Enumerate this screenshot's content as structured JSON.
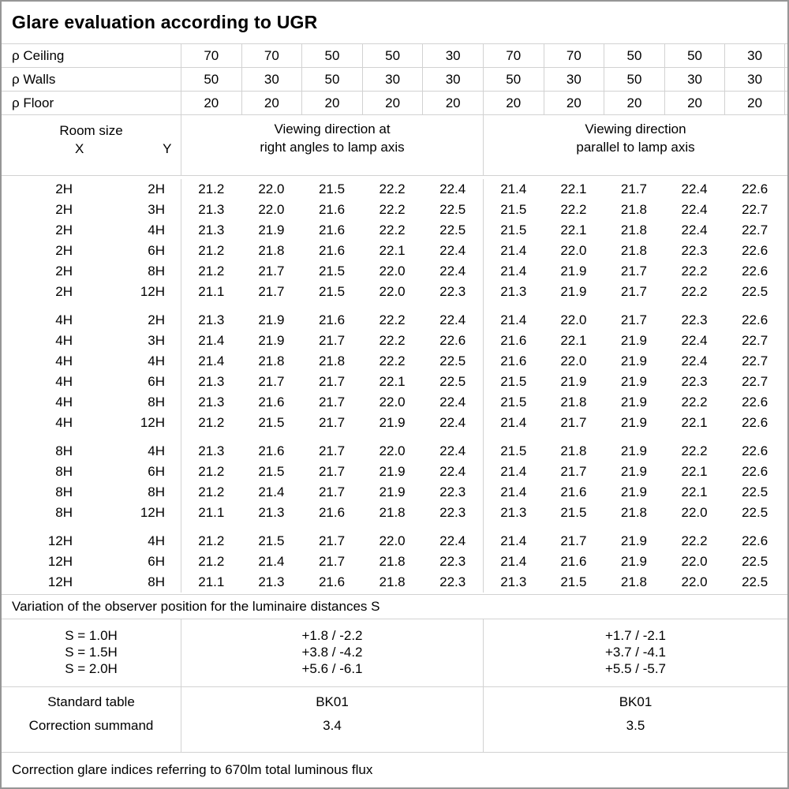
{
  "title": "Glare evaluation according to UGR",
  "reflectances": [
    {
      "label": "ρ Ceiling",
      "values": [
        "70",
        "70",
        "50",
        "50",
        "30",
        "70",
        "70",
        "50",
        "50",
        "30"
      ]
    },
    {
      "label": "ρ Walls",
      "values": [
        "50",
        "30",
        "50",
        "30",
        "30",
        "50",
        "30",
        "50",
        "30",
        "30"
      ]
    },
    {
      "label": "ρ Floor",
      "values": [
        "20",
        "20",
        "20",
        "20",
        "20",
        "20",
        "20",
        "20",
        "20",
        "20"
      ]
    }
  ],
  "header": {
    "room_size_label": "Room size",
    "x_label": "X",
    "y_label": "Y",
    "group1_line1": "Viewing direction at",
    "group1_line2": "right angles to lamp axis",
    "group2_line1": "Viewing direction",
    "group2_line2": "parallel to lamp axis"
  },
  "rows": [
    {
      "x": "2H",
      "y": "2H",
      "values": [
        "21.2",
        "22.0",
        "21.5",
        "22.2",
        "22.4",
        "21.4",
        "22.1",
        "21.7",
        "22.4",
        "22.6"
      ]
    },
    {
      "x": "2H",
      "y": "3H",
      "values": [
        "21.3",
        "22.0",
        "21.6",
        "22.2",
        "22.5",
        "21.5",
        "22.2",
        "21.8",
        "22.4",
        "22.7"
      ]
    },
    {
      "x": "2H",
      "y": "4H",
      "values": [
        "21.3",
        "21.9",
        "21.6",
        "22.2",
        "22.5",
        "21.5",
        "22.1",
        "21.8",
        "22.4",
        "22.7"
      ]
    },
    {
      "x": "2H",
      "y": "6H",
      "values": [
        "21.2",
        "21.8",
        "21.6",
        "22.1",
        "22.4",
        "21.4",
        "22.0",
        "21.8",
        "22.3",
        "22.6"
      ]
    },
    {
      "x": "2H",
      "y": "8H",
      "values": [
        "21.2",
        "21.7",
        "21.5",
        "22.0",
        "22.4",
        "21.4",
        "21.9",
        "21.7",
        "22.2",
        "22.6"
      ]
    },
    {
      "x": "2H",
      "y": "12H",
      "values": [
        "21.1",
        "21.7",
        "21.5",
        "22.0",
        "22.3",
        "21.3",
        "21.9",
        "21.7",
        "22.2",
        "22.5"
      ]
    },
    {
      "x": "4H",
      "y": "2H",
      "values": [
        "21.3",
        "21.9",
        "21.6",
        "22.2",
        "22.4",
        "21.4",
        "22.0",
        "21.7",
        "22.3",
        "22.6"
      ]
    },
    {
      "x": "4H",
      "y": "3H",
      "values": [
        "21.4",
        "21.9",
        "21.7",
        "22.2",
        "22.6",
        "21.6",
        "22.1",
        "21.9",
        "22.4",
        "22.7"
      ]
    },
    {
      "x": "4H",
      "y": "4H",
      "values": [
        "21.4",
        "21.8",
        "21.8",
        "22.2",
        "22.5",
        "21.6",
        "22.0",
        "21.9",
        "22.4",
        "22.7"
      ]
    },
    {
      "x": "4H",
      "y": "6H",
      "values": [
        "21.3",
        "21.7",
        "21.7",
        "22.1",
        "22.5",
        "21.5",
        "21.9",
        "21.9",
        "22.3",
        "22.7"
      ]
    },
    {
      "x": "4H",
      "y": "8H",
      "values": [
        "21.3",
        "21.6",
        "21.7",
        "22.0",
        "22.4",
        "21.5",
        "21.8",
        "21.9",
        "22.2",
        "22.6"
      ]
    },
    {
      "x": "4H",
      "y": "12H",
      "values": [
        "21.2",
        "21.5",
        "21.7",
        "21.9",
        "22.4",
        "21.4",
        "21.7",
        "21.9",
        "22.1",
        "22.6"
      ]
    },
    {
      "x": "8H",
      "y": "4H",
      "values": [
        "21.3",
        "21.6",
        "21.7",
        "22.0",
        "22.4",
        "21.5",
        "21.8",
        "21.9",
        "22.2",
        "22.6"
      ]
    },
    {
      "x": "8H",
      "y": "6H",
      "values": [
        "21.2",
        "21.5",
        "21.7",
        "21.9",
        "22.4",
        "21.4",
        "21.7",
        "21.9",
        "22.1",
        "22.6"
      ]
    },
    {
      "x": "8H",
      "y": "8H",
      "values": [
        "21.2",
        "21.4",
        "21.7",
        "21.9",
        "22.3",
        "21.4",
        "21.6",
        "21.9",
        "22.1",
        "22.5"
      ]
    },
    {
      "x": "8H",
      "y": "12H",
      "values": [
        "21.1",
        "21.3",
        "21.6",
        "21.8",
        "22.3",
        "21.3",
        "21.5",
        "21.8",
        "22.0",
        "22.5"
      ]
    },
    {
      "x": "12H",
      "y": "4H",
      "values": [
        "21.2",
        "21.5",
        "21.7",
        "22.0",
        "22.4",
        "21.4",
        "21.7",
        "21.9",
        "22.2",
        "22.6"
      ]
    },
    {
      "x": "12H",
      "y": "6H",
      "values": [
        "21.2",
        "21.4",
        "21.7",
        "21.8",
        "22.3",
        "21.4",
        "21.6",
        "21.9",
        "22.0",
        "22.5"
      ]
    },
    {
      "x": "12H",
      "y": "8H",
      "values": [
        "21.1",
        "21.3",
        "21.6",
        "21.8",
        "22.3",
        "21.3",
        "21.5",
        "21.8",
        "22.0",
        "22.5"
      ]
    }
  ],
  "variation_note": "Variation of the observer position for the luminaire distances S",
  "variation": {
    "labels": [
      "S = 1.0H",
      "S = 1.5H",
      "S = 2.0H"
    ],
    "group1": [
      "+1.8 / -2.2",
      "+3.8 / -4.2",
      "+5.6 / -6.1"
    ],
    "group2": [
      "+1.7 / -2.1",
      "+3.7 / -4.1",
      "+5.5 / -5.7"
    ]
  },
  "summary": {
    "row1_label": "Standard table",
    "row2_label": "Correction summand",
    "group1": {
      "standard_table": "BK01",
      "correction_summand": "3.4"
    },
    "group2": {
      "standard_table": "BK01",
      "correction_summand": "3.5"
    }
  },
  "footer_note": "Correction glare indices referring to 670lm total luminous flux"
}
